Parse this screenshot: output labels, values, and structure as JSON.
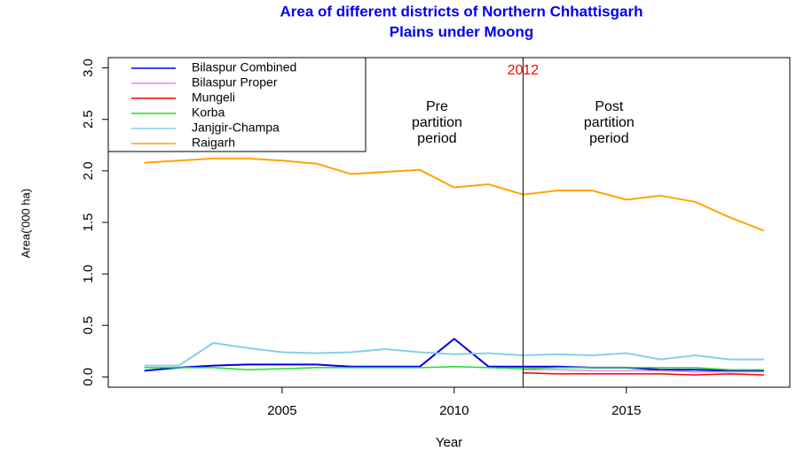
{
  "chart_data": {
    "type": "line",
    "title": [
      "Area of different districts of Northern Chhattisgarh",
      "Plains under Moong"
    ],
    "x_label": "Year",
    "y_label": "Area('000 ha)",
    "x": [
      2001,
      2002,
      2003,
      2004,
      2005,
      2006,
      2007,
      2008,
      2009,
      2010,
      2011,
      2012,
      2013,
      2014,
      2015,
      2016,
      2017,
      2018,
      2019
    ],
    "xlim": [
      1999.95,
      2019.75
    ],
    "xticks": [
      2005,
      2010,
      2015
    ],
    "ylim": [
      -0.1,
      3.1
    ],
    "yticks": [
      {
        "value": 0,
        "label": "0.0"
      },
      0.5,
      {
        "value": 1,
        "label": "1.0"
      },
      1.5,
      {
        "value": 2,
        "label": "2.0"
      },
      2.5,
      {
        "value": 3,
        "label": "3.0"
      }
    ],
    "legend": "top-left",
    "vline": {
      "x": 2012,
      "color": "#ff0000"
    },
    "annotations": [
      {
        "lines": [
          "Pre",
          "partition",
          "period"
        ],
        "x": 2009.5
      },
      {
        "lines": [
          "Post",
          "partition",
          "period"
        ],
        "x": 2014.5
      }
    ],
    "series": [
      {
        "name": "Bilaspur Combined",
        "color": "#0000ee",
        "width": 2,
        "values": [
          0.06,
          0.09,
          0.11,
          0.12,
          0.12,
          0.12,
          0.1,
          0.1,
          0.1,
          0.37,
          0.1,
          0.1,
          0.1,
          0.09,
          0.09,
          0.07,
          0.07,
          0.06,
          0.06
        ]
      },
      {
        "name": "Bilaspur Proper",
        "color": "#ee82ee",
        "width": 1.5,
        "values": [
          null,
          null,
          null,
          null,
          null,
          null,
          null,
          null,
          null,
          null,
          null,
          0.07,
          0.07,
          0.06,
          0.06,
          0.06,
          0.05,
          0.05,
          0.05
        ]
      },
      {
        "name": "Mungeli",
        "color": "#ee0000",
        "width": 1.5,
        "values": [
          null,
          null,
          null,
          null,
          null,
          null,
          null,
          null,
          null,
          null,
          null,
          0.04,
          0.03,
          0.03,
          0.03,
          0.03,
          0.02,
          0.03,
          0.02
        ]
      },
      {
        "name": "Korba",
        "color": "#22dd22",
        "width": 1.5,
        "values": [
          0.09,
          0.09,
          0.09,
          0.07,
          0.08,
          0.09,
          0.09,
          0.09,
          0.09,
          0.1,
          0.09,
          0.08,
          0.09,
          0.09,
          0.09,
          0.09,
          0.09,
          0.07,
          0.07
        ]
      },
      {
        "name": "Janjgir-Champa",
        "color": "#87ceeb",
        "width": 2,
        "values": [
          0.11,
          0.11,
          0.33,
          0.28,
          0.24,
          0.23,
          0.24,
          0.27,
          0.24,
          0.22,
          0.23,
          0.21,
          0.22,
          0.21,
          0.23,
          0.17,
          0.21,
          0.17,
          0.17
        ]
      },
      {
        "name": "Raigarh",
        "color": "#ffa500",
        "width": 2,
        "values": [
          2.08,
          2.1,
          2.12,
          2.12,
          2.1,
          2.07,
          1.97,
          1.99,
          2.01,
          1.84,
          1.87,
          1.77,
          1.81,
          1.81,
          1.72,
          1.76,
          1.7,
          1.55,
          1.42
        ]
      }
    ]
  }
}
